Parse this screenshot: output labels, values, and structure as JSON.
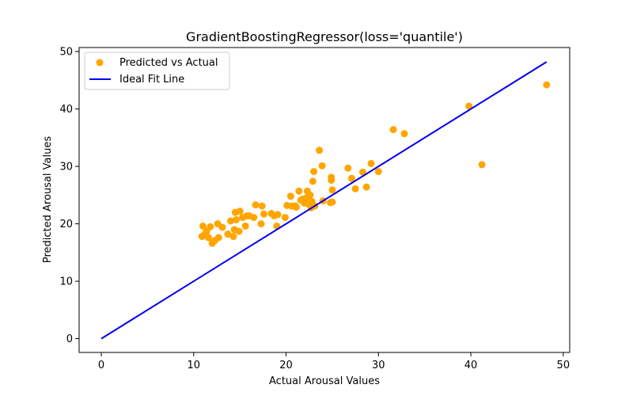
{
  "chart_data": {
    "type": "scatter",
    "title": "GradientBoostingRegressor(loss='quantile')",
    "xlabel": "Actual Arousal Values",
    "ylabel": "Predicted Arousal Values",
    "xlim": [
      -2.4,
      50.7
    ],
    "ylim": [
      -2.4,
      50.7
    ],
    "xticks": [
      0,
      10,
      20,
      30,
      40,
      50
    ],
    "yticks": [
      0,
      10,
      20,
      30,
      40,
      50
    ],
    "grid": false,
    "legend_position": "upper-left",
    "series": [
      {
        "name": "Predicted vs Actual",
        "kind": "scatter",
        "color": "#ffa500",
        "x": [
          10.9,
          11.0,
          11.2,
          11.4,
          11.6,
          11.8,
          12.0,
          12.3,
          12.6,
          12.7,
          13.1,
          13.7,
          14.0,
          14.3,
          14.4,
          14.5,
          14.6,
          14.9,
          15.0,
          15.3,
          15.6,
          15.8,
          16.0,
          16.5,
          16.7,
          17.3,
          17.4,
          17.6,
          18.4,
          18.7,
          19.0,
          19.1,
          19.9,
          20.1,
          20.5,
          20.6,
          21.0,
          21.1,
          21.4,
          21.6,
          21.8,
          22.0,
          22.2,
          22.3,
          22.5,
          22.6,
          22.7,
          22.8,
          22.9,
          23.0,
          23.1,
          23.6,
          23.9,
          24.0,
          24.8,
          24.9,
          24.9,
          25.0,
          25.0,
          26.7,
          27.1,
          27.5,
          28.3,
          28.7,
          29.2,
          30.0,
          31.6,
          32.8,
          39.8,
          41.2,
          48.2
        ],
        "y": [
          17.8,
          19.6,
          18.2,
          18.7,
          17.6,
          19.5,
          16.6,
          17.1,
          20.0,
          17.6,
          19.4,
          18.2,
          20.5,
          17.8,
          19.0,
          22.0,
          20.7,
          18.7,
          22.2,
          21.1,
          19.6,
          21.4,
          21.4,
          21.1,
          23.3,
          20.0,
          23.1,
          21.7,
          21.8,
          21.4,
          19.6,
          21.6,
          21.1,
          23.2,
          24.8,
          23.1,
          23.1,
          22.9,
          25.7,
          24.1,
          24.3,
          23.6,
          24.5,
          25.7,
          23.4,
          25.0,
          22.8,
          23.9,
          27.4,
          29.1,
          23.1,
          32.8,
          30.1,
          24.0,
          23.7,
          27.6,
          28.1,
          25.9,
          23.8,
          29.7,
          27.9,
          26.1,
          29.0,
          26.4,
          30.5,
          29.1,
          36.4,
          35.7,
          40.5,
          30.3,
          44.2
        ]
      },
      {
        "name": "Ideal Fit Line",
        "kind": "line",
        "color": "#0000ee",
        "x": [
          0,
          48.2
        ],
        "y": [
          0,
          48.2
        ]
      }
    ]
  }
}
